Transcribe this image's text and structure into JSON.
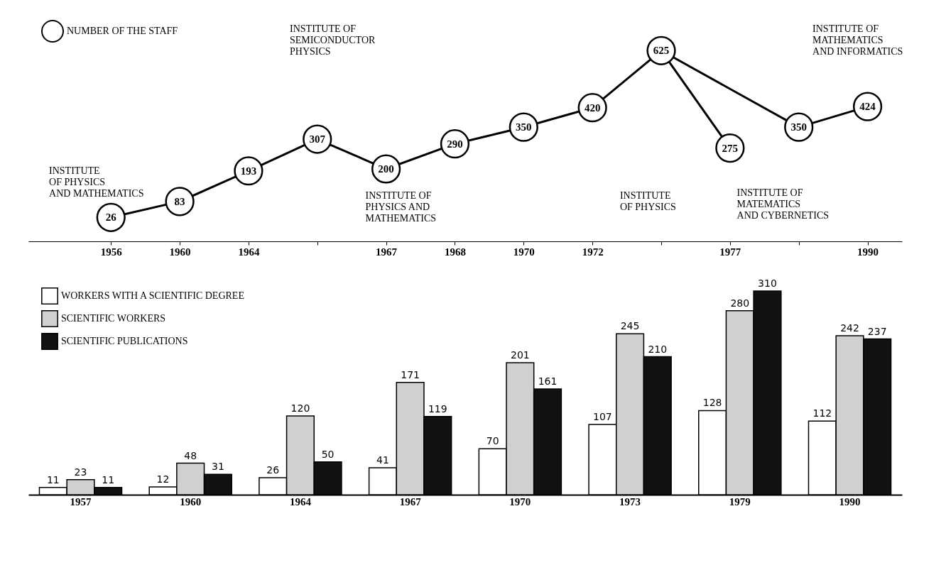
{
  "chart_data": [
    {
      "type": "line",
      "categories": [
        "1956",
        "1960",
        "1964",
        null,
        "1967",
        "1968",
        "1970",
        "1972",
        null,
        "1977",
        null,
        "1990"
      ],
      "series": [
        {
          "name": "NUMBER OF THE STAFF",
          "color": "#000000",
          "values": [
            26,
            83,
            193,
            307,
            200,
            290,
            350,
            420,
            625,
            null,
            null,
            null
          ]
        },
        {
          "color": "#000000",
          "values": [
            null,
            null,
            null,
            null,
            null,
            null,
            null,
            null,
            625,
            275,
            null,
            null
          ],
          "value_labels": [
            null,
            null,
            null,
            null,
            null,
            null,
            null,
            null,
            null,
            "275",
            null,
            null
          ]
        },
        {
          "color": "#000000",
          "values": [
            null,
            null,
            null,
            null,
            null,
            null,
            null,
            null,
            625,
            null,
            350,
            424
          ],
          "value_labels": [
            null,
            null,
            null,
            null,
            null,
            null,
            null,
            null,
            null,
            null,
            "350",
            "424"
          ]
        }
      ],
      "marker": "circle",
      "data_labels": true,
      "legend": "top left",
      "grid": false,
      "annotations": [
        "INSTITUTE\nOF PHYSICS\nAND MATHEMATICS",
        "INSTITUTE OF\nSEMICONDUCTOR\nPHYSICS",
        "INSTITUTE OF\nPHYSICS AND\nMATHEMATICS",
        "INSTITUTE\nOF PHYSICS",
        "INSTITUTE OF\nMATEMATICS\nAND CYBERNETICS",
        "INSTITUTE OF\nMATHEMATICS\nAND INFORMATICS"
      ]
    },
    {
      "type": "bar",
      "categories": [
        "1957",
        "1960",
        "1964",
        "1967",
        "1970",
        "1973",
        "1979",
        "1990"
      ],
      "series": [
        {
          "name": "WORKERS WITH A SCIENTIFIC DEGREE",
          "color": "#ffffff",
          "values": [
            11,
            12,
            26,
            41,
            70,
            107,
            128,
            112
          ]
        },
        {
          "name": "SCIENTIFIC WORKERS",
          "color": "#d0d0d0",
          "values": [
            23,
            48,
            120,
            171,
            201,
            245,
            280,
            242
          ]
        },
        {
          "name": "SCIENTIFIC PUBLICATIONS",
          "color": "#111111",
          "values": [
            11,
            31,
            50,
            119,
            161,
            210,
            310,
            237
          ]
        }
      ],
      "data_labels": true,
      "legend": "top left",
      "grid": false
    }
  ]
}
